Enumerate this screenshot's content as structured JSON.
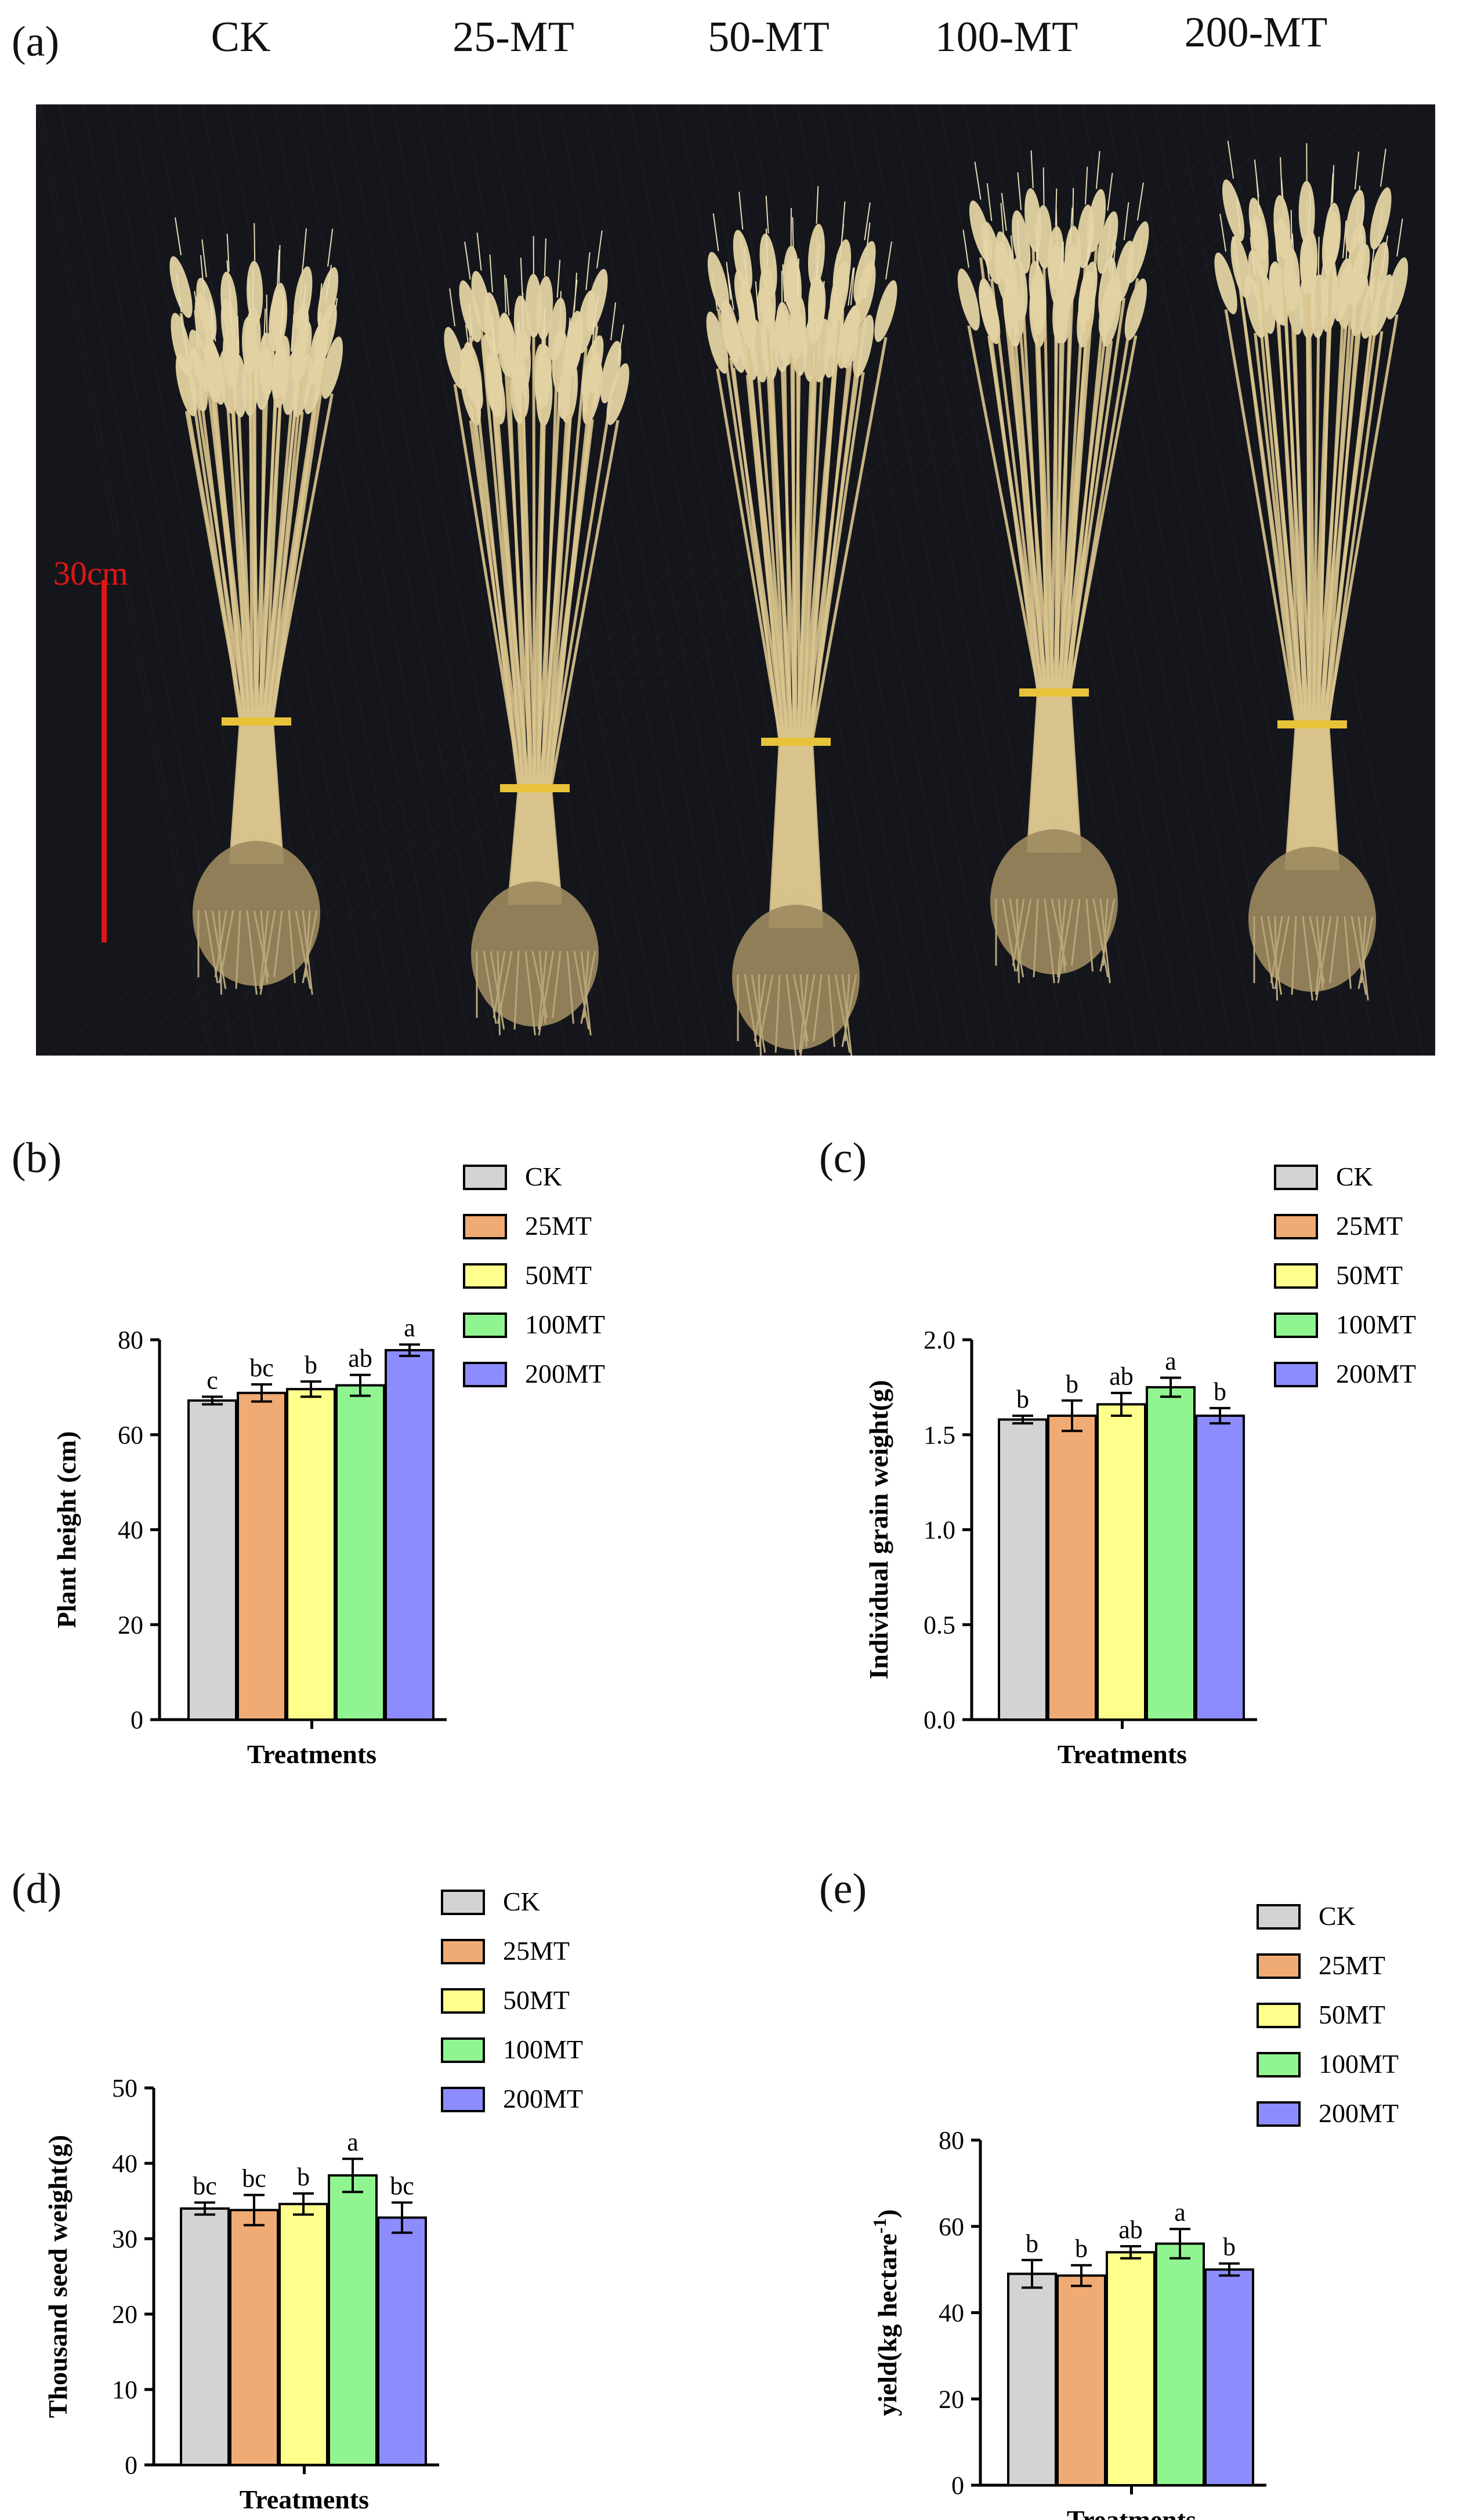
{
  "panel_a": {
    "label": "(a)",
    "treatments": [
      "CK",
      "25-MT",
      "50-MT",
      "100-MT",
      "200-MT"
    ],
    "scale_label": "30cm",
    "colors": {
      "background": "#14161b",
      "scale_bar": "#e01616",
      "straw": "#d9c48e",
      "roots": "#9c8a5e"
    }
  },
  "chart_data": [
    {
      "panel": "(b)",
      "type": "bar",
      "categories": [
        "CK",
        "25MT",
        "50MT",
        "100MT",
        "200MT"
      ],
      "values": [
        67.2,
        68.8,
        69.6,
        70.4,
        77.8
      ],
      "errors": [
        0.8,
        1.8,
        1.6,
        2.2,
        1.2
      ],
      "significance": [
        "c",
        "bc",
        "b",
        "ab",
        "a"
      ],
      "xlabel": "Treatments",
      "ylabel": "Plant height (cm)",
      "ylim": [
        0,
        80
      ],
      "yticks": [
        "0",
        "20",
        "40",
        "60",
        "80"
      ],
      "legend": [
        "CK",
        "25MT",
        "50MT",
        "100MT",
        "200MT"
      ],
      "legend_position": "top-right"
    },
    {
      "panel": "(c)",
      "type": "bar",
      "categories": [
        "CK",
        "25MT",
        "50MT",
        "100MT",
        "200MT"
      ],
      "values": [
        1.58,
        1.6,
        1.66,
        1.75,
        1.6
      ],
      "errors": [
        0.02,
        0.08,
        0.06,
        0.05,
        0.04
      ],
      "significance": [
        "b",
        "b",
        "ab",
        "a",
        "b"
      ],
      "xlabel": "Treatments",
      "ylabel": "Individual grain weight(g)",
      "ylim": [
        0,
        2.0
      ],
      "yticks": [
        "0.0",
        "0.5",
        "1.0",
        "1.5",
        "2.0"
      ],
      "legend": [
        "CK",
        "25MT",
        "50MT",
        "100MT",
        "200MT"
      ],
      "legend_position": "top-right"
    },
    {
      "panel": "(d)",
      "type": "bar",
      "categories": [
        "CK",
        "25MT",
        "50MT",
        "100MT",
        "200MT"
      ],
      "values": [
        34.0,
        33.8,
        34.6,
        38.4,
        32.8
      ],
      "errors": [
        0.8,
        2.0,
        1.4,
        2.2,
        2.0
      ],
      "significance": [
        "bc",
        "bc",
        "b",
        "a",
        "bc"
      ],
      "xlabel": "Treatments",
      "ylabel": "Thousand seed weight(g)",
      "ylim": [
        0,
        50
      ],
      "yticks": [
        "0",
        "10",
        "20",
        "30",
        "40",
        "50"
      ],
      "legend": [
        "CK",
        "25MT",
        "50MT",
        "100MT",
        "200MT"
      ],
      "legend_position": "top-right"
    },
    {
      "panel": "(e)",
      "type": "bar",
      "categories": [
        "CK",
        "25MT",
        "50MT",
        "100MT",
        "200MT"
      ],
      "values": [
        49.0,
        48.6,
        54.0,
        56.0,
        50.0
      ],
      "errors": [
        3.2,
        2.4,
        1.4,
        3.4,
        1.4
      ],
      "significance": [
        "b",
        "b",
        "ab",
        "a",
        "b"
      ],
      "xlabel": "Treatments",
      "ylabel": "yield(kg hectare",
      "ylabel_superscript": "-1",
      "ylabel_suffix": ")",
      "ylim": [
        0,
        80
      ],
      "yticks": [
        "0",
        "20",
        "40",
        "60",
        "80"
      ],
      "legend": [
        "CK",
        "25MT",
        "50MT",
        "100MT",
        "200MT"
      ],
      "legend_position": "top-right"
    }
  ],
  "series_colors": [
    "#d3d3d3",
    "#f0ab74",
    "#ffff8c",
    "#90f590",
    "#8c8cff"
  ]
}
